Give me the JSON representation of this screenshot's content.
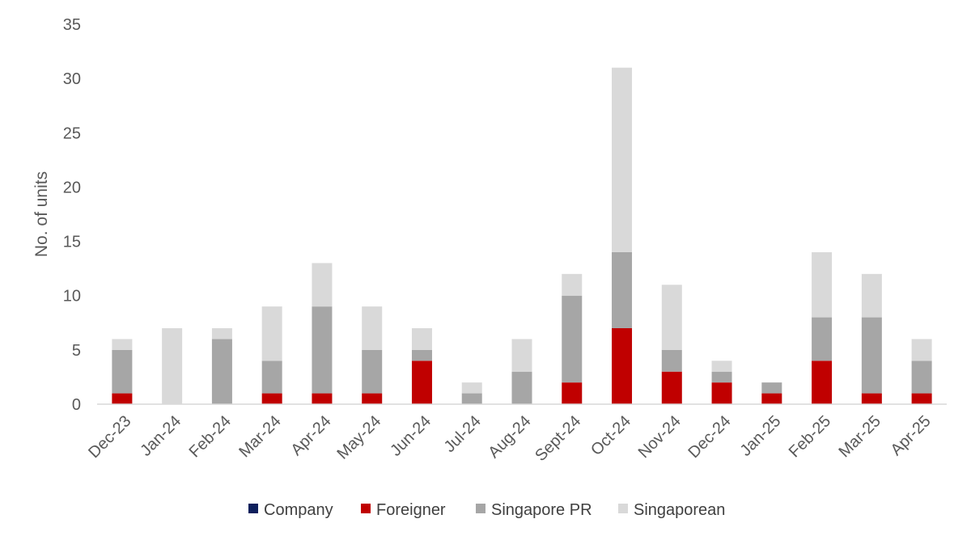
{
  "chart_data": {
    "type": "bar",
    "stacked": true,
    "title": "",
    "xlabel": "",
    "ylabel": "No. of units",
    "ylim": [
      0,
      35
    ],
    "yticks": [
      0,
      5,
      10,
      15,
      20,
      25,
      30,
      35
    ],
    "grid": false,
    "legend_position": "bottom",
    "categories": [
      "Dec-23",
      "Jan-24",
      "Feb-24",
      "Mar-24",
      "Apr-24",
      "May-24",
      "Jun-24",
      "Jul-24",
      "Aug-24",
      "Sept-24",
      "Oct-24",
      "Nov-24",
      "Dec-24",
      "Jan-25",
      "Feb-25",
      "Mar-25",
      "Apr-25"
    ],
    "series": [
      {
        "name": "Company",
        "color": "#0d1f5c",
        "values": [
          0,
          0,
          0,
          0,
          0,
          0,
          0,
          0,
          0,
          0,
          0,
          0,
          0,
          0,
          0,
          0,
          0
        ]
      },
      {
        "name": "Foreigner",
        "color": "#c00000",
        "values": [
          1,
          0,
          0,
          1,
          1,
          1,
          4,
          0,
          0,
          2,
          7,
          3,
          2,
          1,
          4,
          1,
          1
        ]
      },
      {
        "name": "Singapore PR",
        "color": "#a6a6a6",
        "values": [
          4,
          0,
          6,
          3,
          8,
          4,
          1,
          1,
          3,
          8,
          7,
          2,
          1,
          1,
          4,
          7,
          3
        ]
      },
      {
        "name": "Singaporean",
        "color": "#d9d9d9",
        "values": [
          1,
          7,
          1,
          5,
          4,
          4,
          2,
          1,
          3,
          2,
          17,
          6,
          1,
          0,
          6,
          4,
          2
        ]
      }
    ]
  }
}
